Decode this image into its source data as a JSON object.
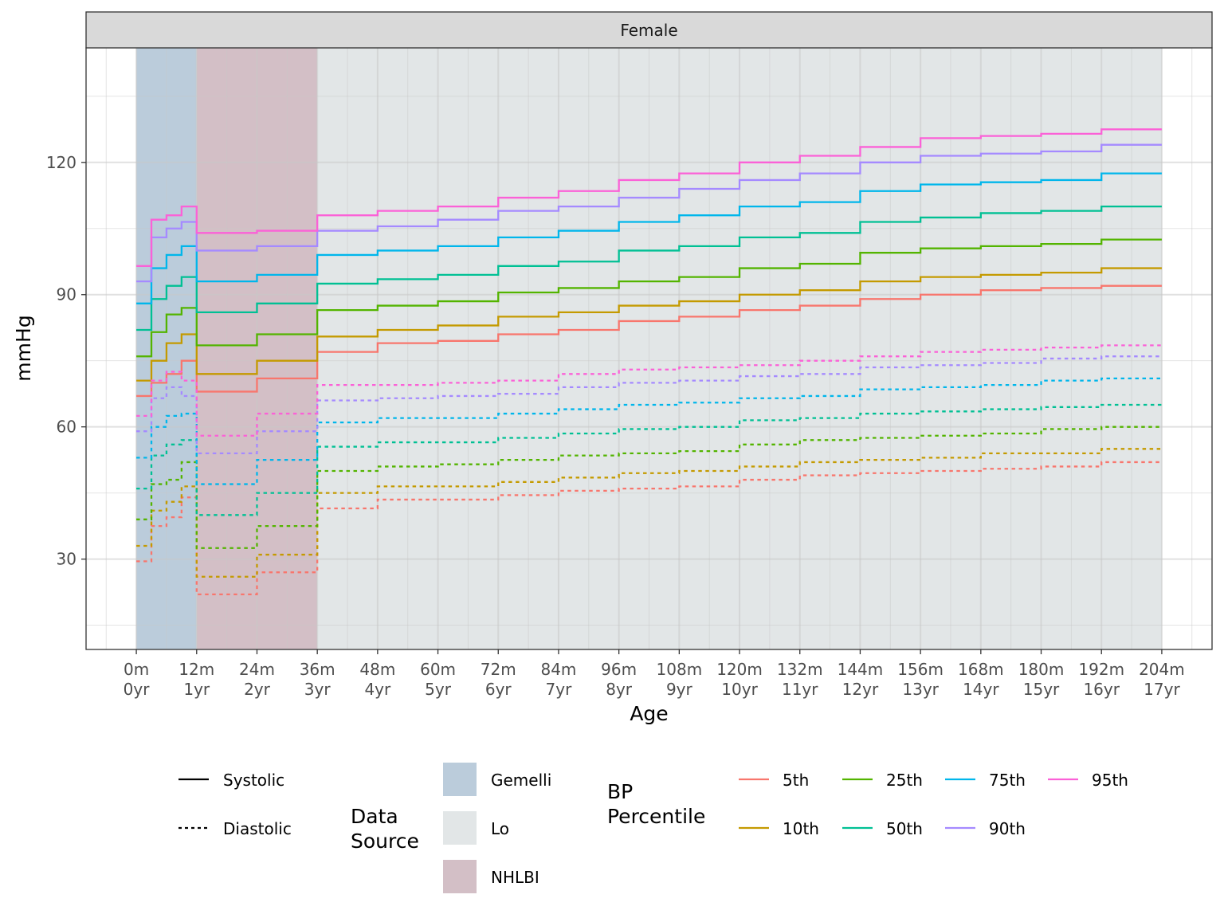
{
  "chart_data": {
    "type": "line",
    "facet_label": "Female",
    "xlabel": "Age",
    "ylabel": "mmHg",
    "xlim": [
      -10,
      214
    ],
    "ylim": [
      9.5,
      146
    ],
    "y_ticks": [
      30,
      60,
      90,
      120
    ],
    "x_ticks": [
      0,
      12,
      24,
      36,
      48,
      60,
      72,
      84,
      96,
      108,
      120,
      132,
      144,
      156,
      168,
      180,
      192,
      204
    ],
    "x_tick_labels_months": [
      "0m",
      "12m",
      "24m",
      "36m",
      "48m",
      "60m",
      "72m",
      "84m",
      "96m",
      "108m",
      "120m",
      "132m",
      "144m",
      "156m",
      "168m",
      "180m",
      "192m",
      "204m"
    ],
    "x_tick_labels_years": [
      "0yr",
      "1yr",
      "2yr",
      "3yr",
      "4yr",
      "5yr",
      "6yr",
      "7yr",
      "8yr",
      "9yr",
      "10yr",
      "11yr",
      "12yr",
      "13yr",
      "14yr",
      "15yr",
      "16yr",
      "17yr"
    ],
    "grid": true,
    "x_unit": "months",
    "data_source_regions": [
      {
        "name": "Gemelli",
        "x_start": 0,
        "x_end": 12,
        "color": "#BBCCDB"
      },
      {
        "name": "NHLBI",
        "x_start": 12,
        "x_end": 36,
        "color": "#D3BFC6"
      },
      {
        "name": "Lo",
        "x_start": 36,
        "x_end": 204,
        "color": "#E2E6E7"
      }
    ],
    "step_x": [
      0,
      2,
      3,
      5,
      6,
      8,
      9,
      11,
      12,
      24,
      36,
      48,
      60,
      72,
      84,
      96,
      108,
      120,
      132,
      144,
      156,
      168,
      180,
      192,
      204
    ],
    "series": [
      {
        "percentile": "5th",
        "type": "Systolic",
        "color": "#F8766D",
        "values": [
          67,
          67,
          70,
          70,
          72,
          72,
          75,
          75,
          68,
          71,
          77,
          79,
          79.5,
          81,
          82,
          84,
          85,
          86.5,
          87.5,
          89,
          90,
          91,
          91.5,
          92,
          92
        ]
      },
      {
        "percentile": "10th",
        "type": "Systolic",
        "color": "#C49A00",
        "values": [
          70.5,
          70.5,
          75,
          75,
          79,
          79,
          81,
          81,
          72,
          75,
          80.5,
          82,
          83,
          85,
          86,
          87.5,
          88.5,
          90,
          91,
          93,
          94,
          94.5,
          95,
          96,
          96
        ]
      },
      {
        "percentile": "25th",
        "type": "Systolic",
        "color": "#53B400",
        "values": [
          76,
          76,
          81.5,
          81.5,
          85.5,
          85.5,
          87,
          87,
          78.5,
          81,
          86.5,
          87.5,
          88.5,
          90.5,
          91.5,
          93,
          94,
          96,
          97,
          99.5,
          100.5,
          101,
          101.5,
          102.5,
          102.5
        ]
      },
      {
        "percentile": "50th",
        "type": "Systolic",
        "color": "#00C094",
        "values": [
          82,
          82,
          89,
          89,
          92,
          92,
          94,
          94,
          86,
          88,
          92.5,
          93.5,
          94.5,
          96.5,
          97.5,
          100,
          101,
          103,
          104,
          106.5,
          107.5,
          108.5,
          109,
          110,
          110
        ]
      },
      {
        "percentile": "75th",
        "type": "Systolic",
        "color": "#00B6EB",
        "values": [
          88,
          88,
          96,
          96,
          99,
          99,
          101,
          101,
          93,
          94.5,
          99,
          100,
          101,
          103,
          104.5,
          106.5,
          108,
          110,
          111,
          113.5,
          115,
          115.5,
          116,
          117.5,
          117.5
        ]
      },
      {
        "percentile": "90th",
        "type": "Systolic",
        "color": "#A58AFF",
        "values": [
          93,
          93,
          103,
          103,
          105,
          105,
          106.5,
          106.5,
          100,
          101,
          104.5,
          105.5,
          107,
          109,
          110,
          112,
          114,
          116,
          117.5,
          120,
          121.5,
          122,
          122.5,
          124,
          124
        ]
      },
      {
        "percentile": "95th",
        "type": "Systolic",
        "color": "#FB61D7",
        "values": [
          96.5,
          96.5,
          107,
          107,
          108,
          108,
          110,
          110,
          104,
          104.5,
          108,
          109,
          110,
          112,
          113.5,
          116,
          117.5,
          120,
          121.5,
          123.5,
          125.5,
          126,
          126.5,
          127.5,
          127.5
        ]
      },
      {
        "percentile": "5th",
        "type": "Diastolic",
        "color": "#F8766D",
        "values": [
          29.5,
          29.5,
          37.5,
          37.5,
          39.5,
          39.5,
          44,
          44,
          22,
          27,
          41.5,
          43.5,
          43.5,
          44.5,
          45.5,
          46,
          46.5,
          48,
          49,
          49.5,
          50,
          50.5,
          51,
          52,
          52
        ]
      },
      {
        "percentile": "10th",
        "type": "Diastolic",
        "color": "#C49A00",
        "values": [
          33,
          33,
          41,
          41,
          43,
          43,
          46.5,
          46.5,
          26,
          31,
          45,
          46.5,
          46.5,
          47.5,
          48.5,
          49.5,
          50,
          51,
          52,
          52.5,
          53,
          54,
          54,
          55,
          55
        ]
      },
      {
        "percentile": "25th",
        "type": "Diastolic",
        "color": "#53B400",
        "values": [
          39,
          39,
          47,
          47,
          48,
          48,
          52,
          52,
          32.5,
          37.5,
          50,
          51,
          51.5,
          52.5,
          53.5,
          54,
          54.5,
          56,
          57,
          57.5,
          58,
          58.5,
          59.5,
          60,
          60
        ]
      },
      {
        "percentile": "50th",
        "type": "Diastolic",
        "color": "#00C094",
        "values": [
          46,
          46,
          53.5,
          53.5,
          56,
          56,
          57,
          57,
          40,
          45,
          55.5,
          56.5,
          56.5,
          57.5,
          58.5,
          59.5,
          60,
          61.5,
          62,
          63,
          63.5,
          64,
          64.5,
          65,
          65
        ]
      },
      {
        "percentile": "75th",
        "type": "Diastolic",
        "color": "#00B6EB",
        "values": [
          53,
          53,
          60,
          60,
          62.5,
          62.5,
          63,
          63,
          47,
          52.5,
          61,
          62,
          62,
          63,
          64,
          65,
          65.5,
          66.5,
          67,
          68.5,
          69,
          69.5,
          70.5,
          71,
          71
        ]
      },
      {
        "percentile": "90th",
        "type": "Diastolic",
        "color": "#A58AFF",
        "values": [
          59,
          59,
          66.5,
          66.5,
          69,
          69,
          67,
          67,
          54,
          59,
          66,
          66.5,
          67,
          67.5,
          69,
          70,
          70.5,
          71.5,
          72,
          73.5,
          74,
          74.5,
          75.5,
          76,
          76
        ]
      },
      {
        "percentile": "95th",
        "type": "Diastolic",
        "color": "#FB61D7",
        "values": [
          62.5,
          62.5,
          70.5,
          70.5,
          72.5,
          72.5,
          70.5,
          70.5,
          58,
          63,
          69.5,
          69.5,
          70,
          70.5,
          72,
          73,
          73.5,
          74,
          75,
          76,
          77,
          77.5,
          78,
          78.5,
          78.5
        ]
      }
    ],
    "legend": {
      "placement": "bottom",
      "linetype": [
        {
          "label": "Systolic",
          "dash": "solid"
        },
        {
          "label": "Diastolic",
          "dash": "dotted"
        }
      ],
      "data_source": {
        "title_line1": "Data",
        "title_line2": "Source",
        "items": [
          {
            "label": "Gemelli",
            "color": "#BBCCDB"
          },
          {
            "label": "Lo",
            "color": "#E2E6E7"
          },
          {
            "label": "NHLBI",
            "color": "#D3BFC6"
          }
        ]
      },
      "percentile": {
        "title_line1": "BP",
        "title_line2": "Percentile",
        "items": [
          {
            "label": "5th",
            "color": "#F8766D"
          },
          {
            "label": "10th",
            "color": "#C49A00"
          },
          {
            "label": "25th",
            "color": "#53B400"
          },
          {
            "label": "50th",
            "color": "#00C094"
          },
          {
            "label": "75th",
            "color": "#00B6EB"
          },
          {
            "label": "90th",
            "color": "#A58AFF"
          },
          {
            "label": "95th",
            "color": "#FB61D7"
          }
        ]
      }
    }
  }
}
